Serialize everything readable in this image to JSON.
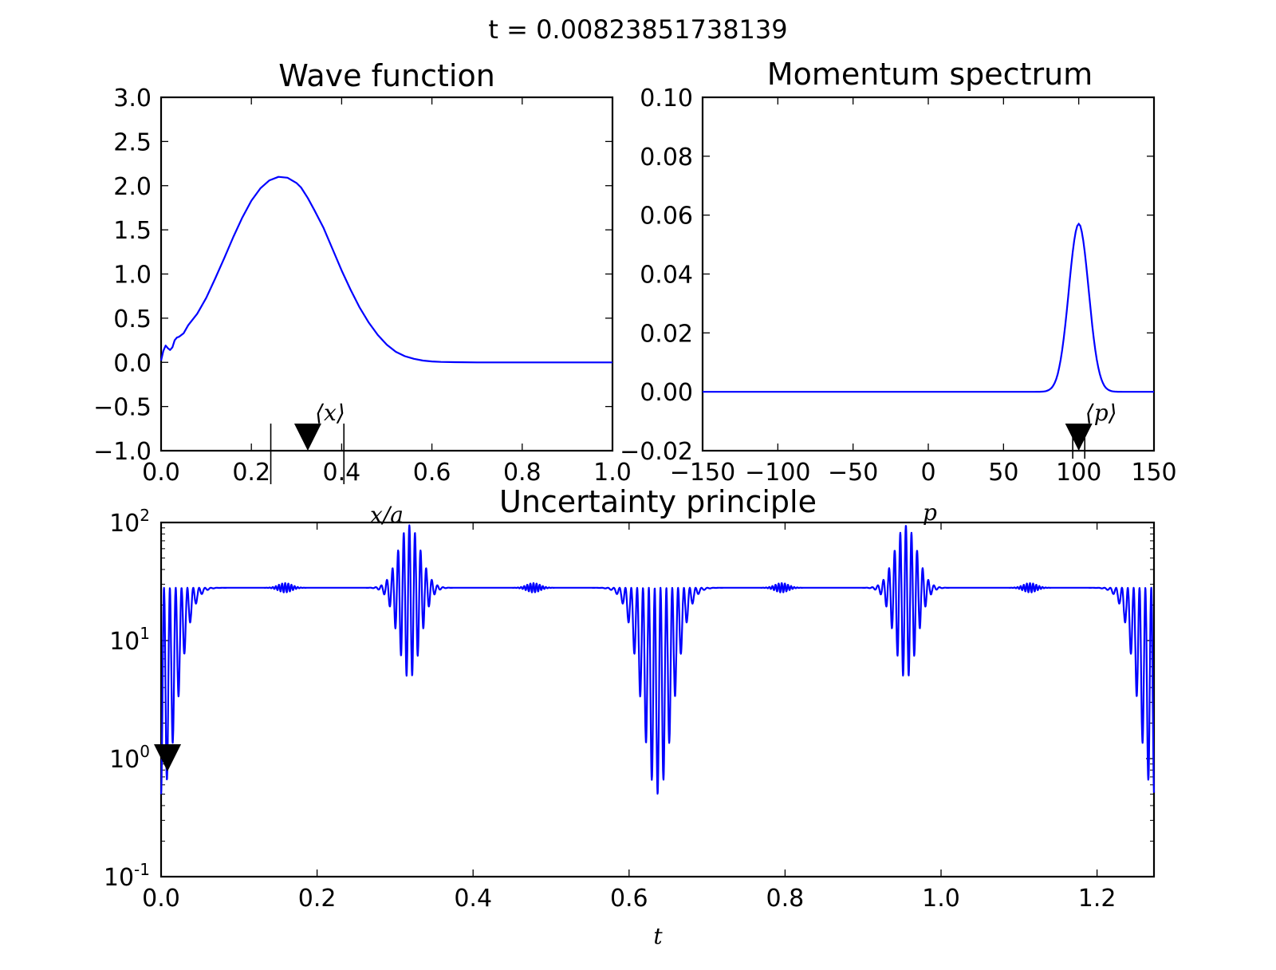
{
  "figure": {
    "suptitle": "t = 0.00823851738139"
  },
  "colors": {
    "line": "#0000ff",
    "marker": "#000000",
    "axes": "#000000",
    "background": "#ffffff"
  },
  "chart_data": [
    {
      "id": "wave",
      "type": "line",
      "title": "Wave function",
      "xlabel": "x/a",
      "ylabel": "",
      "xlim": [
        0,
        1
      ],
      "ylim": [
        -1,
        3
      ],
      "xticks": [
        "0.0",
        "0.2",
        "0.4",
        "0.6",
        "0.8",
        "1.0"
      ],
      "xtick_values": [
        0,
        0.2,
        0.4,
        0.6,
        0.8,
        1.0
      ],
      "yticks": [
        "−1.0",
        "−0.5",
        "0.0",
        "0.5",
        "1.0",
        "1.5",
        "2.0",
        "2.5",
        "3.0"
      ],
      "ytick_values": [
        -1,
        -0.5,
        0,
        0.5,
        1,
        1.5,
        2,
        2.5,
        3
      ],
      "series": [
        {
          "x": [
            0,
            0.005,
            0.01,
            0.015,
            0.02,
            0.025,
            0.03,
            0.035,
            0.04,
            0.05,
            0.06,
            0.08,
            0.1,
            0.12,
            0.14,
            0.16,
            0.18,
            0.2,
            0.22,
            0.24,
            0.26,
            0.28,
            0.3,
            0.31,
            0.325,
            0.34,
            0.36,
            0.38,
            0.4,
            0.42,
            0.44,
            0.46,
            0.48,
            0.5,
            0.52,
            0.54,
            0.56,
            0.58,
            0.6,
            0.62,
            0.65,
            0.7,
            0.75,
            0.8,
            0.9,
            1.0
          ],
          "y": [
            0.02,
            0.13,
            0.19,
            0.16,
            0.14,
            0.17,
            0.25,
            0.28,
            0.29,
            0.33,
            0.42,
            0.55,
            0.73,
            0.95,
            1.18,
            1.42,
            1.64,
            1.83,
            1.97,
            2.06,
            2.1,
            2.09,
            2.03,
            1.98,
            1.86,
            1.72,
            1.52,
            1.28,
            1.04,
            0.82,
            0.62,
            0.45,
            0.31,
            0.2,
            0.12,
            0.07,
            0.04,
            0.02,
            0.01,
            0.005,
            0.002,
            0.0,
            0.0,
            0.0,
            0.0,
            0.0
          ]
        }
      ],
      "marker": {
        "label": "⟨x⟩",
        "x": 0.325
      },
      "bracket": {
        "x": [
          0.243,
          0.405
        ]
      }
    },
    {
      "id": "momentum",
      "type": "line",
      "title": "Momentum spectrum",
      "xlabel": "p",
      "ylabel": "",
      "xlim": [
        -150,
        150
      ],
      "ylim": [
        -0.02,
        0.1
      ],
      "xticks": [
        "−150",
        "−100",
        "−50",
        "0",
        "50",
        "100",
        "150"
      ],
      "xtick_values": [
        -150,
        -100,
        -50,
        0,
        50,
        100,
        150
      ],
      "yticks": [
        "−0.02",
        "0.00",
        "0.02",
        "0.04",
        "0.06",
        "0.08",
        "0.10"
      ],
      "ytick_values": [
        -0.02,
        0,
        0.02,
        0.04,
        0.06,
        0.08,
        0.1
      ],
      "series": [
        {
          "peak_center": 100,
          "peak_height": 0.057,
          "peak_width": 6.6
        }
      ],
      "marker": {
        "label": "⟨p⟩",
        "x": 100
      },
      "bracket": {
        "x": [
          96,
          104
        ]
      }
    },
    {
      "id": "uncertainty",
      "type": "line",
      "title": "Uncertainty principle",
      "xlabel": "t",
      "ylabel": "",
      "xlim": [
        0,
        1.273
      ],
      "ylim_log10": [
        -1,
        2
      ],
      "yscale": "log",
      "xticks": [
        "0.0",
        "0.2",
        "0.4",
        "0.6",
        "0.8",
        "1.0",
        "1.2"
      ],
      "xtick_values": [
        0,
        0.2,
        0.4,
        0.6,
        0.8,
        1.0,
        1.2
      ],
      "yticks": [
        {
          "base": "10",
          "exp": "2",
          "value": 2
        },
        {
          "base": "10",
          "exp": "1",
          "value": 1
        },
        {
          "base": "10",
          "exp": "0",
          "value": 0
        },
        {
          "base": "10",
          "exp": "-1",
          "value": -1
        }
      ],
      "series": [
        {
          "period": 0.6366,
          "plateau_value": 28,
          "min_value": 0.5,
          "revival_min_value": 7
        }
      ],
      "marker": {
        "x": 0.0082
      }
    }
  ]
}
